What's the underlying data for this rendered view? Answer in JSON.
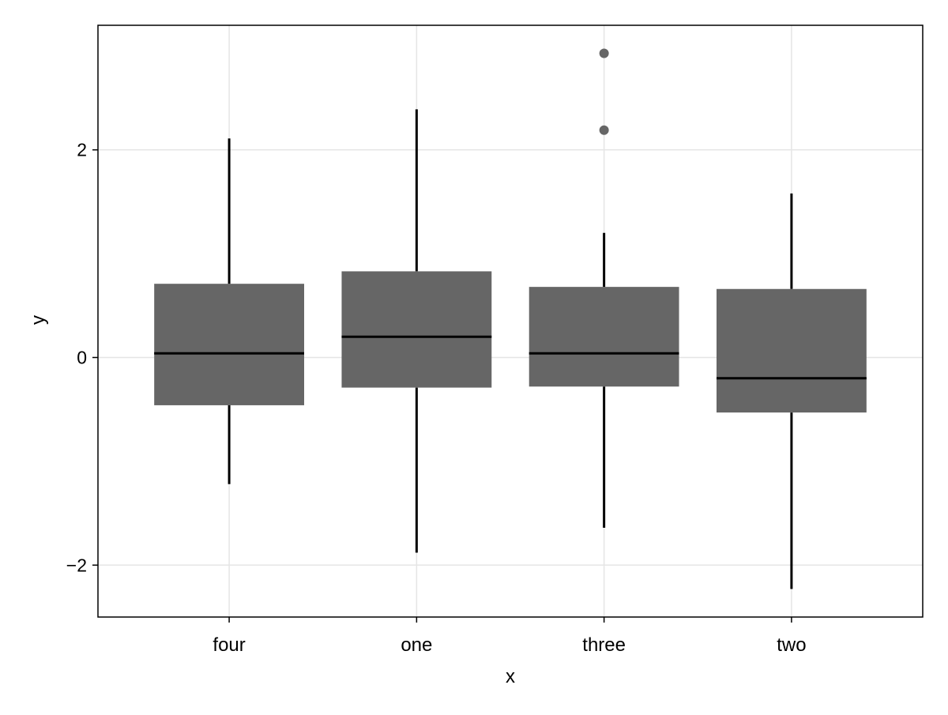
{
  "chart_data": {
    "type": "boxplot",
    "title": "",
    "xlabel": "x",
    "ylabel": "y",
    "categories": [
      "four",
      "one",
      "three",
      "two"
    ],
    "ylim": [
      -2.5,
      3.2
    ],
    "yticks": [
      -2,
      0,
      2
    ],
    "ytick_labels": [
      "−2",
      "0",
      "2"
    ],
    "grid": true,
    "box_color": "#666666",
    "outlier_color": "#666666",
    "median_color": "#000000",
    "whisker_color": "#000000",
    "boxes": [
      {
        "category": "four",
        "whisker_low": -1.22,
        "q1": -0.46,
        "median": 0.04,
        "q3": 0.71,
        "whisker_high": 2.11,
        "outliers": []
      },
      {
        "category": "one",
        "whisker_low": -1.88,
        "q1": -0.29,
        "median": 0.2,
        "q3": 0.83,
        "whisker_high": 2.39,
        "outliers": []
      },
      {
        "category": "three",
        "whisker_low": -1.64,
        "q1": -0.28,
        "median": 0.04,
        "q3": 0.68,
        "whisker_high": 1.2,
        "outliers": [
          2.19,
          2.93
        ]
      },
      {
        "category": "two",
        "whisker_low": -2.23,
        "q1": -0.53,
        "median": -0.2,
        "q3": 0.66,
        "whisker_high": 1.58,
        "outliers": []
      }
    ]
  }
}
